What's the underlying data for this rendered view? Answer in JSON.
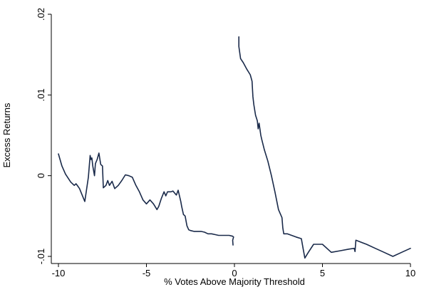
{
  "chart_data": {
    "type": "line",
    "title": "",
    "xlabel": "% Votes Above Majority Threshold",
    "ylabel": "Excess Returns",
    "xlim": [
      -10,
      10
    ],
    "ylim": [
      -0.01,
      0.02
    ],
    "xticks": [
      -10,
      -5,
      0,
      5,
      10
    ],
    "xtick_labels": [
      "-10",
      "-5",
      "0",
      "5",
      "10"
    ],
    "yticks": [
      -0.01,
      0,
      0.01,
      0.02
    ],
    "ytick_labels": [
      "-.01",
      "0",
      ".01",
      ".02"
    ],
    "grid": false,
    "legend": "none",
    "line_color": "#1a2a4a",
    "series": [
      {
        "segment": "left",
        "x": [
          -10.0,
          -9.8,
          -9.6,
          -9.3,
          -9.1,
          -9.0,
          -8.9,
          -8.8,
          -8.65,
          -8.5,
          -8.3,
          -8.2,
          -8.15,
          -8.1,
          -8.05,
          -7.95,
          -7.9,
          -7.8,
          -7.7,
          -7.6,
          -7.5,
          -7.45,
          -7.3,
          -7.2,
          -7.1,
          -6.95,
          -6.8,
          -6.6,
          -6.4,
          -6.2,
          -6.0,
          -5.8,
          -5.6,
          -5.4,
          -5.2,
          -5.0,
          -4.8,
          -4.6,
          -4.4,
          -4.3,
          -4.15,
          -4.0,
          -3.9,
          -3.8,
          -3.6,
          -3.5,
          -3.3,
          -3.2,
          -3.05,
          -3.0,
          -2.9,
          -2.8,
          -2.7,
          -2.6,
          -2.5,
          -2.3,
          -2.1,
          -1.9,
          -1.7,
          -1.5,
          -1.3,
          -1.1,
          -0.9,
          -0.7,
          -0.5,
          -0.3,
          -0.1,
          -0.05,
          -0.1,
          -0.08
        ],
        "y": [
          0.0027,
          0.0012,
          0.0002,
          -0.0008,
          -0.0012,
          -0.001,
          -0.0013,
          -0.0016,
          -0.0024,
          -0.0032,
          -0.0002,
          0.0025,
          0.002,
          0.0022,
          0.0012,
          0.0,
          0.0015,
          0.002,
          0.0028,
          0.0014,
          0.0012,
          -0.0015,
          -0.0012,
          -0.0006,
          -0.0012,
          -0.0007,
          -0.0016,
          -0.0012,
          -0.0006,
          0.0001,
          0.0,
          -0.0002,
          -0.0012,
          -0.002,
          -0.003,
          -0.0035,
          -0.003,
          -0.0035,
          -0.0042,
          -0.0038,
          -0.0028,
          -0.002,
          -0.0025,
          -0.002,
          -0.002,
          -0.0019,
          -0.0024,
          -0.0018,
          -0.0032,
          -0.0038,
          -0.0048,
          -0.005,
          -0.0062,
          -0.0067,
          -0.0068,
          -0.0069,
          -0.0069,
          -0.0069,
          -0.007,
          -0.0072,
          -0.0072,
          -0.0073,
          -0.0074,
          -0.0074,
          -0.0074,
          -0.0074,
          -0.0075,
          -0.0076,
          -0.008,
          -0.0086
        ]
      },
      {
        "segment": "right",
        "x": [
          0.25,
          0.25,
          0.35,
          0.5,
          0.7,
          0.9,
          1.0,
          1.05,
          1.1,
          1.2,
          1.3,
          1.35,
          1.4,
          1.5,
          1.55,
          1.7,
          1.9,
          2.1,
          2.3,
          2.5,
          2.7,
          2.75,
          2.8,
          3.0,
          3.5,
          3.8,
          3.9,
          4.0,
          4.2,
          4.5,
          5.0,
          5.5,
          6.0,
          6.5,
          6.8,
          6.85,
          6.9,
          7.5,
          8.0,
          8.5,
          9.0,
          9.5,
          10.0
        ],
        "y": [
          0.0172,
          0.016,
          0.0145,
          0.014,
          0.0132,
          0.0125,
          0.0117,
          0.0098,
          0.0088,
          0.0075,
          0.0068,
          0.0058,
          0.0065,
          0.005,
          0.0045,
          0.0032,
          0.0018,
          0.0,
          -0.002,
          -0.0042,
          -0.0052,
          -0.0065,
          -0.0072,
          -0.0072,
          -0.0076,
          -0.0078,
          -0.009,
          -0.0102,
          -0.0095,
          -0.0085,
          -0.0085,
          -0.0095,
          -0.0093,
          -0.0091,
          -0.009,
          -0.0094,
          -0.008,
          -0.0085,
          -0.009,
          -0.0095,
          -0.01,
          -0.0095,
          -0.009
        ]
      }
    ]
  }
}
